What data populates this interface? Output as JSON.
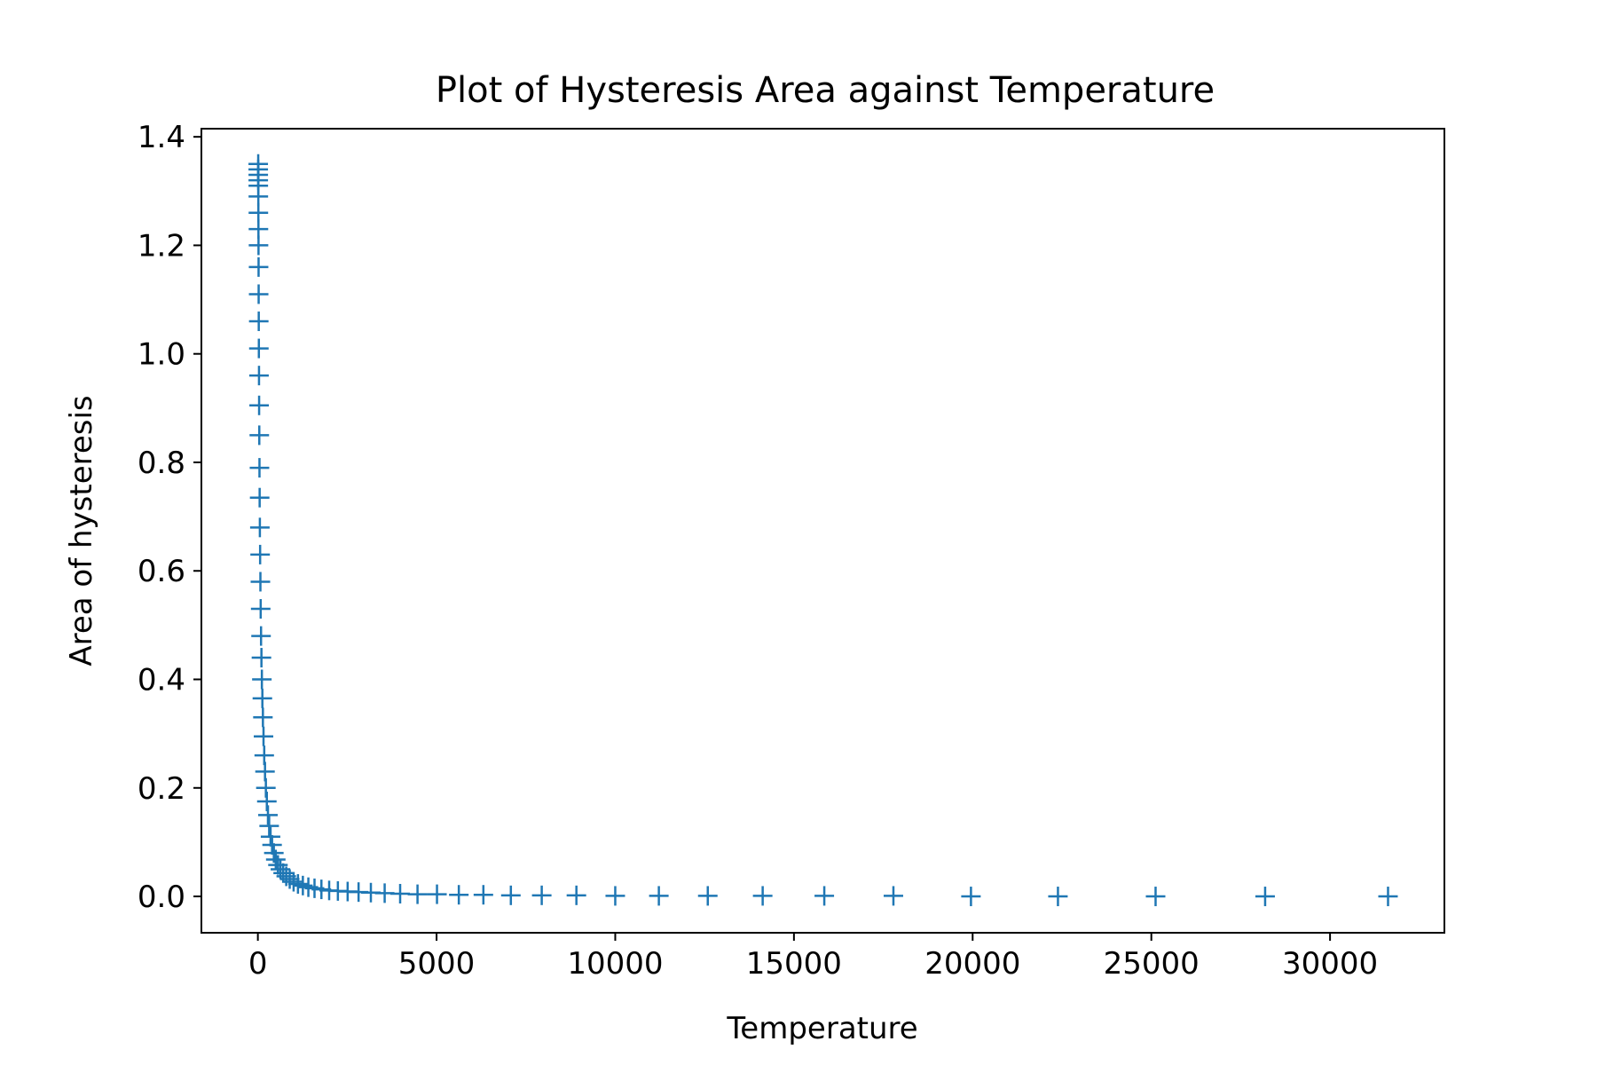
{
  "chart_data": {
    "type": "scatter",
    "title": "Plot of Hysteresis Area against Temperature",
    "xlabel": "Temperature",
    "ylabel": "Area of hysteresis",
    "xlim": [
      -1580,
      33200
    ],
    "ylim": [
      -0.067,
      1.415
    ],
    "xticks": [
      0,
      5000,
      10000,
      15000,
      20000,
      25000,
      30000
    ],
    "yticks": [
      0.0,
      0.2,
      0.4,
      0.6,
      0.8,
      1.0,
      1.2,
      1.4
    ],
    "xtick_labels": [
      "0",
      "5000",
      "10000",
      "15000",
      "20000",
      "25000",
      "30000"
    ],
    "ytick_labels": [
      "0.0",
      "0.2",
      "0.4",
      "0.6",
      "0.8",
      "1.0",
      "1.2",
      "1.4"
    ],
    "marker": "+",
    "color": "#1f77b4",
    "grid": false,
    "series": [
      {
        "x": [
          10,
          10,
          11,
          11,
          12,
          13,
          14,
          16,
          18,
          20,
          22,
          25,
          28,
          32,
          35,
          40,
          45,
          50,
          56,
          63,
          71,
          79,
          89,
          100,
          112,
          126,
          141,
          158,
          178,
          200,
          224,
          251,
          282,
          316,
          355,
          398,
          447,
          501,
          562,
          631,
          708,
          794,
          891,
          1000,
          1122,
          1259,
          1413,
          1585,
          1778,
          1995,
          2239,
          2512,
          2818,
          3162,
          3548,
          3981,
          4467,
          5012,
          5623,
          6310,
          7079,
          7943,
          8913,
          10000,
          11220,
          12589,
          14125,
          15849,
          17783,
          19953,
          22387,
          25119,
          28184,
          31623
        ],
        "y": [
          1.35,
          1.34,
          1.33,
          1.32,
          1.31,
          1.29,
          1.26,
          1.23,
          1.2,
          1.16,
          1.11,
          1.06,
          1.01,
          0.96,
          0.905,
          0.85,
          0.79,
          0.735,
          0.68,
          0.63,
          0.58,
          0.53,
          0.48,
          0.44,
          0.4,
          0.365,
          0.33,
          0.295,
          0.26,
          0.23,
          0.2,
          0.175,
          0.15,
          0.13,
          0.11,
          0.095,
          0.08,
          0.068,
          0.058,
          0.05,
          0.043,
          0.037,
          0.032,
          0.027,
          0.023,
          0.02,
          0.017,
          0.015,
          0.013,
          0.011,
          0.01,
          0.009,
          0.008,
          0.007,
          0.006,
          0.005,
          0.004,
          0.004,
          0.003,
          0.003,
          0.002,
          0.002,
          0.002,
          0.001,
          0.001,
          0.001,
          0.001,
          0.001,
          0.001,
          0.0,
          0.0,
          0.0,
          0.0,
          0.0
        ]
      }
    ]
  }
}
